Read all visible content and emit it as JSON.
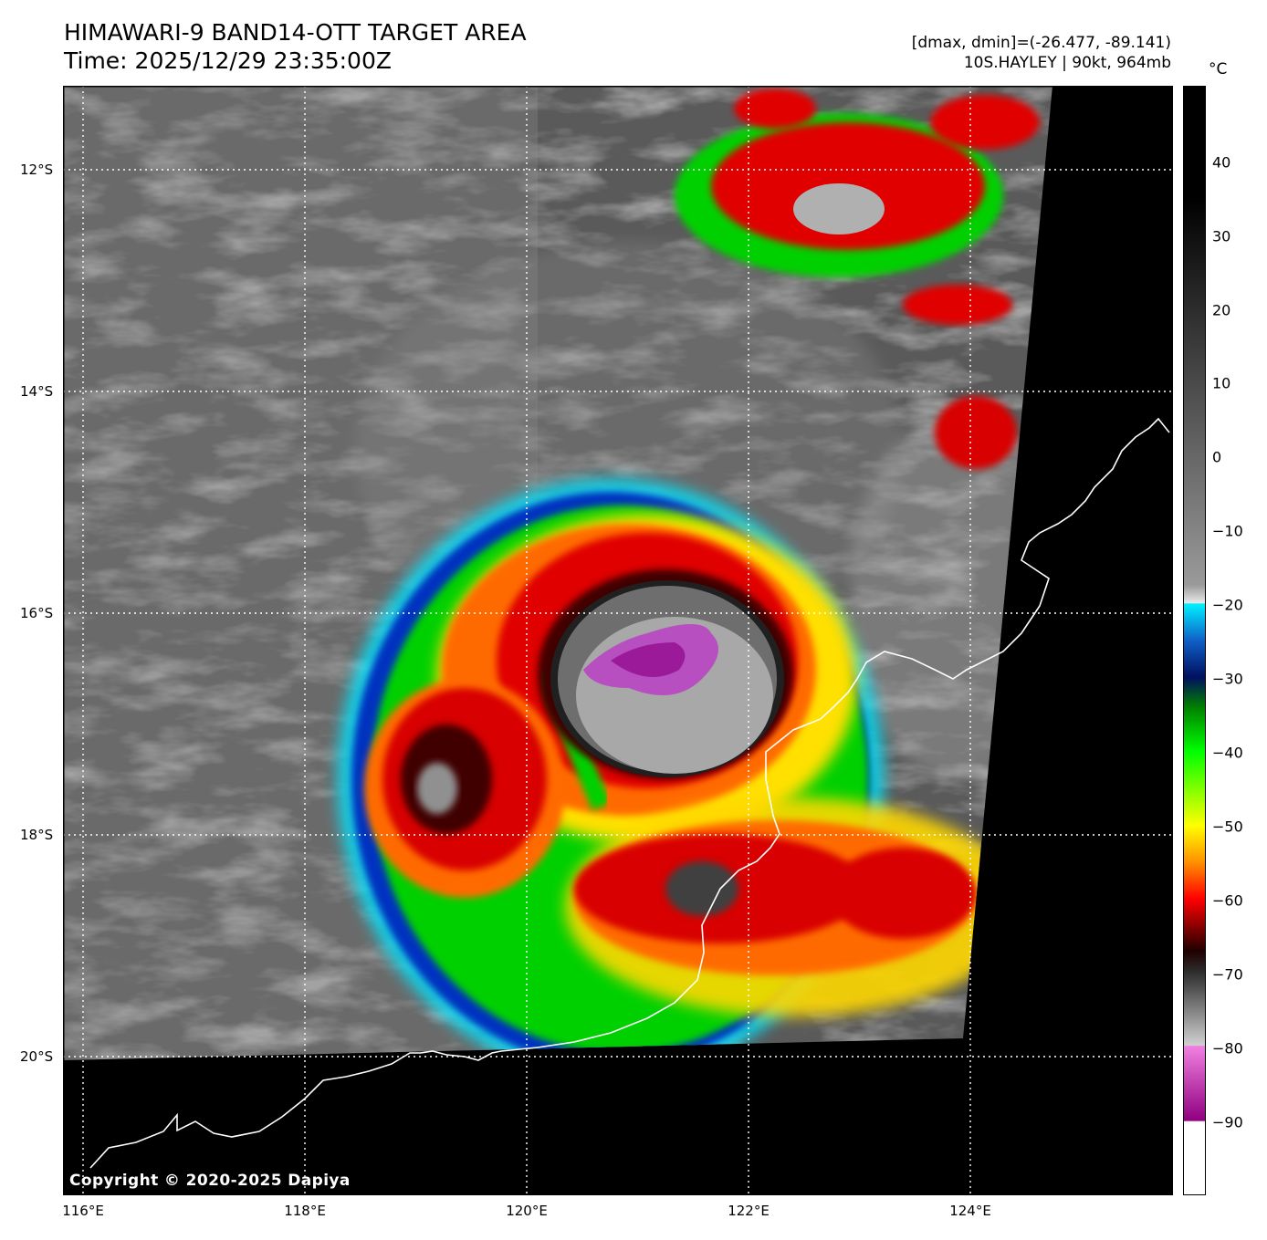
{
  "header": {
    "title_line1": "HIMAWARI-9 BAND14-OTT TARGET AREA",
    "title_line2": "Time: 2025/12/29 23:35:00Z",
    "range_text": "[dmax, dmin]=(-26.477, -89.141)",
    "storm_text": "10S.HAYLEY | 90kt, 964mb"
  },
  "axes": {
    "lat_labels": [
      {
        "text": "12°S",
        "value": -12
      },
      {
        "text": "14°S",
        "value": -14
      },
      {
        "text": "16°S",
        "value": -16
      },
      {
        "text": "18°S",
        "value": -18
      },
      {
        "text": "20°S",
        "value": -20
      }
    ],
    "lon_labels": [
      {
        "text": "116°E",
        "value": 116
      },
      {
        "text": "118°E",
        "value": 118
      },
      {
        "text": "120°E",
        "value": 120
      },
      {
        "text": "122°E",
        "value": 122
      },
      {
        "text": "124°E",
        "value": 124
      }
    ]
  },
  "colorbar": {
    "unit": "°C",
    "ticks": [
      "40",
      "30",
      "20",
      "10",
      "0",
      "−10",
      "−20",
      "−30",
      "−40",
      "−50",
      "−60",
      "−70",
      "−80",
      "−90"
    ],
    "tick_values": [
      40,
      30,
      20,
      10,
      0,
      -10,
      -20,
      -30,
      -40,
      -50,
      -60,
      -70,
      -80,
      -90
    ],
    "range": [
      -100,
      50
    ],
    "colors": {
      "warm_black": "#000000",
      "gray_mid": "#808080",
      "light_gray": "#d8d8d8",
      "cyan": "#00e5ff",
      "blue": "#0030c0",
      "navy": "#001060",
      "green": "#00e000",
      "yellow": "#ffff00",
      "orange": "#ff8000",
      "red": "#e00000",
      "dark_red": "#400000",
      "magenta": "#e060d0",
      "purple": "#a0109a",
      "white": "#ffffff"
    }
  },
  "copyright": "Copyright © 2020-2025 Dapiya",
  "map_colors": {
    "ocean_gray": "#5a5a5a",
    "cloud_gray": "#bdbdbd",
    "no_data": "#000000",
    "coastline": "#ffffff",
    "eye_magenta": "#b84fc0"
  }
}
